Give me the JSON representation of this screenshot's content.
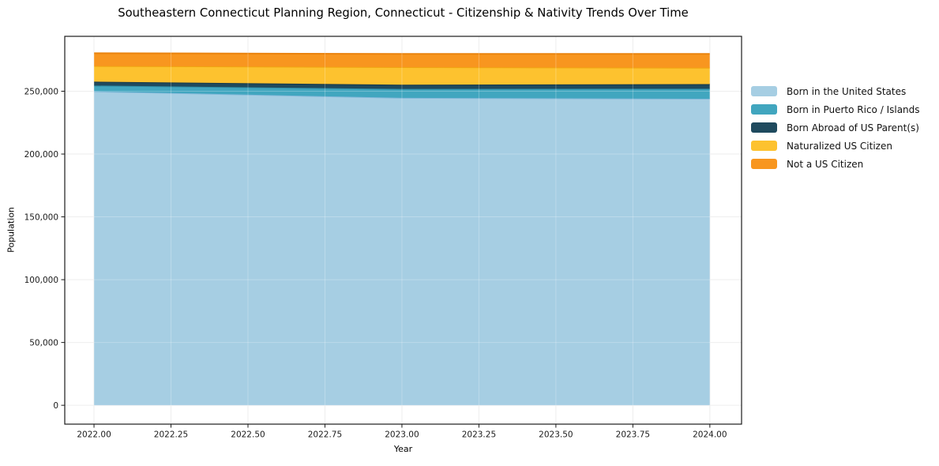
{
  "chart_data": {
    "type": "area",
    "stacked": true,
    "title": "Southeastern Connecticut Planning Region, Connecticut - Citizenship & Nativity Trends Over Time",
    "xlabel": "Year",
    "ylabel": "Population",
    "x": [
      2022,
      2023,
      2024
    ],
    "xlim": [
      2021.905,
      2024.103
    ],
    "ylim": [
      -15000,
      293700
    ],
    "x_ticks": [
      2022.0,
      2022.25,
      2022.5,
      2022.75,
      2023.0,
      2023.25,
      2023.5,
      2023.75,
      2024.0
    ],
    "x_tick_labels": [
      "2022.00",
      "2022.25",
      "2022.50",
      "2022.75",
      "2023.00",
      "2023.25",
      "2023.50",
      "2023.75",
      "2024.00"
    ],
    "y_ticks": [
      0,
      50000,
      100000,
      150000,
      200000,
      250000
    ],
    "y_tick_labels": [
      "0",
      "50,000",
      "100,000",
      "150,000",
      "200,000",
      "250,000"
    ],
    "grid": true,
    "legend_position": "right",
    "series": [
      {
        "name": "Born in the United States",
        "values": [
          249900,
          244700,
          244000
        ],
        "fill": "#a6cee3",
        "edge": "#82b8d9"
      },
      {
        "name": "Born in Puerto Rico / Islands",
        "values": [
          4600,
          7100,
          8000
        ],
        "fill": "#41a6bf",
        "edge": "#2e8fa7"
      },
      {
        "name": "Born Abroad of US Parent(s)",
        "values": [
          3100,
          3400,
          3700
        ],
        "fill": "#1f4a5e",
        "edge": "#16394a"
      },
      {
        "name": "Naturalized US Citizen",
        "values": [
          12500,
          14000,
          13000
        ],
        "fill": "#fdc22f",
        "edge": "#f0a511"
      },
      {
        "name": "Not a US Citizen",
        "values": [
          10200,
          10500,
          11000
        ],
        "fill": "#f8961f",
        "edge": "#ea830e"
      }
    ],
    "axis_color": "#1a1a1a",
    "grid_color": "#e8e8e8"
  }
}
